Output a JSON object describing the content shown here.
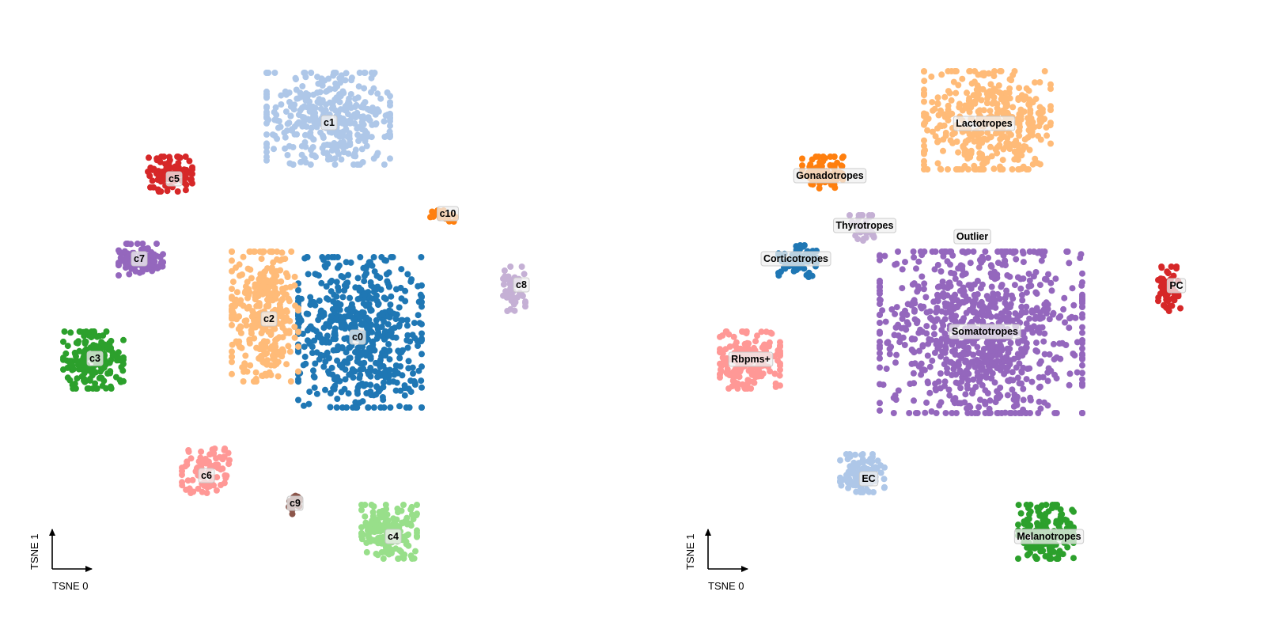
{
  "chart_data": [
    {
      "type": "scatter",
      "title": "",
      "xlabel": "TSNE 0",
      "ylabel": "TSNE 1",
      "legend": "on data",
      "grid": false,
      "xlim": [
        0,
        830
      ],
      "ylim": [
        0,
        805
      ],
      "clusters": [
        {
          "label": "c0",
          "color": "#1f77b4",
          "center": [
            455,
            420
          ],
          "spread": [
            78,
            95
          ],
          "count": 560,
          "label_pos": [
            452,
            426
          ]
        },
        {
          "label": "c1",
          "color": "#aec7e8",
          "center": [
            415,
            150
          ],
          "spread": [
            78,
            58
          ],
          "count": 380,
          "label_pos": [
            416,
            155
          ]
        },
        {
          "label": "c2",
          "color": "#ffbb78",
          "center": [
            335,
            400
          ],
          "spread": [
            42,
            82
          ],
          "count": 330,
          "label_pos": [
            340,
            403
          ]
        },
        {
          "label": "c3",
          "color": "#2ca02c",
          "center": [
            118,
            455
          ],
          "spread": [
            38,
            36
          ],
          "count": 190,
          "label_pos": [
            120,
            453
          ]
        },
        {
          "label": "c4",
          "color": "#98df8a",
          "center": [
            492,
            672
          ],
          "spread": [
            35,
            34
          ],
          "count": 170,
          "label_pos": [
            497,
            678
          ]
        },
        {
          "label": "c5",
          "color": "#d62728",
          "center": [
            215,
            220
          ],
          "spread": [
            28,
            22
          ],
          "count": 90,
          "label_pos": [
            220,
            226
          ]
        },
        {
          "label": "c6",
          "color": "#ff9896",
          "center": [
            260,
            595
          ],
          "spread": [
            30,
            28
          ],
          "count": 90,
          "label_pos": [
            261,
            601
          ]
        },
        {
          "label": "c7",
          "color": "#9467bd",
          "center": [
            178,
            328
          ],
          "spread": [
            28,
            20
          ],
          "count": 110,
          "label_pos": [
            176,
            327
          ]
        },
        {
          "label": "c8",
          "color": "#c5b0d5",
          "center": [
            650,
            365
          ],
          "spread": [
            14,
            28
          ],
          "count": 45,
          "label_pos": [
            659,
            360
          ]
        },
        {
          "label": "c9",
          "color": "#8c564b",
          "center": [
            372,
            636
          ],
          "spread": [
            7,
            14
          ],
          "count": 22,
          "label_pos": [
            373,
            636
          ]
        },
        {
          "label": "c10",
          "color": "#ff7f0e",
          "center": [
            560,
            273
          ],
          "spread": [
            16,
            7
          ],
          "count": 24,
          "label_pos": [
            566,
            270
          ]
        }
      ]
    },
    {
      "type": "scatter",
      "title": "",
      "xlabel": "TSNE 0",
      "ylabel": "TSNE 1",
      "legend": "on data",
      "grid": false,
      "xlim": [
        830,
        1599
      ],
      "ylim": [
        0,
        805
      ],
      "clusters": [
        {
          "label": "Somatotropes",
          "color": "#9467bd",
          "center": [
            1240,
            420
          ],
          "spread": [
            128,
            102
          ],
          "count": 880,
          "label_pos": [
            1245,
            419
          ]
        },
        {
          "label": "Lactotropes",
          "color": "#ffbb78",
          "center": [
            1248,
            152
          ],
          "spread": [
            80,
            62
          ],
          "count": 400,
          "label_pos": [
            1244,
            156
          ]
        },
        {
          "label": "Gonadotropes",
          "color": "#ff7f0e",
          "center": [
            1040,
            218
          ],
          "spread": [
            26,
            20
          ],
          "count": 90,
          "label_pos": [
            1049,
            222
          ]
        },
        {
          "label": "Thyrotropes",
          "color": "#c5b0d5",
          "center": [
            1090,
            288
          ],
          "spread": [
            16,
            16
          ],
          "count": 35,
          "label_pos": [
            1093,
            285
          ]
        },
        {
          "label": "Outlier",
          "color": "#98df8a",
          "center": [
            1205,
            285
          ],
          "spread": [
            60,
            30
          ],
          "count": 0,
          "label_pos": [
            1229,
            299
          ]
        },
        {
          "label": "Corticotropes",
          "color": "#1f77b4",
          "center": [
            1008,
            330
          ],
          "spread": [
            24,
            20
          ],
          "count": 90,
          "label_pos": [
            1006,
            327
          ]
        },
        {
          "label": "PC",
          "color": "#d62728",
          "center": [
            1478,
            365
          ],
          "spread": [
            14,
            28
          ],
          "count": 55,
          "label_pos": [
            1487,
            361
          ]
        },
        {
          "label": "Rbpms+",
          "color": "#ff9896",
          "center": [
            948,
            455
          ],
          "spread": [
            38,
            36
          ],
          "count": 190,
          "label_pos": [
            949,
            454
          ]
        },
        {
          "label": "EC",
          "color": "#aec7e8",
          "center": [
            1090,
            598
          ],
          "spread": [
            28,
            24
          ],
          "count": 100,
          "label_pos": [
            1098,
            605
          ]
        },
        {
          "label": "Melanotropes",
          "color": "#2ca02c",
          "center": [
            1322,
            672
          ],
          "spread": [
            35,
            34
          ],
          "count": 170,
          "label_pos": [
            1326,
            678
          ]
        }
      ]
    }
  ]
}
